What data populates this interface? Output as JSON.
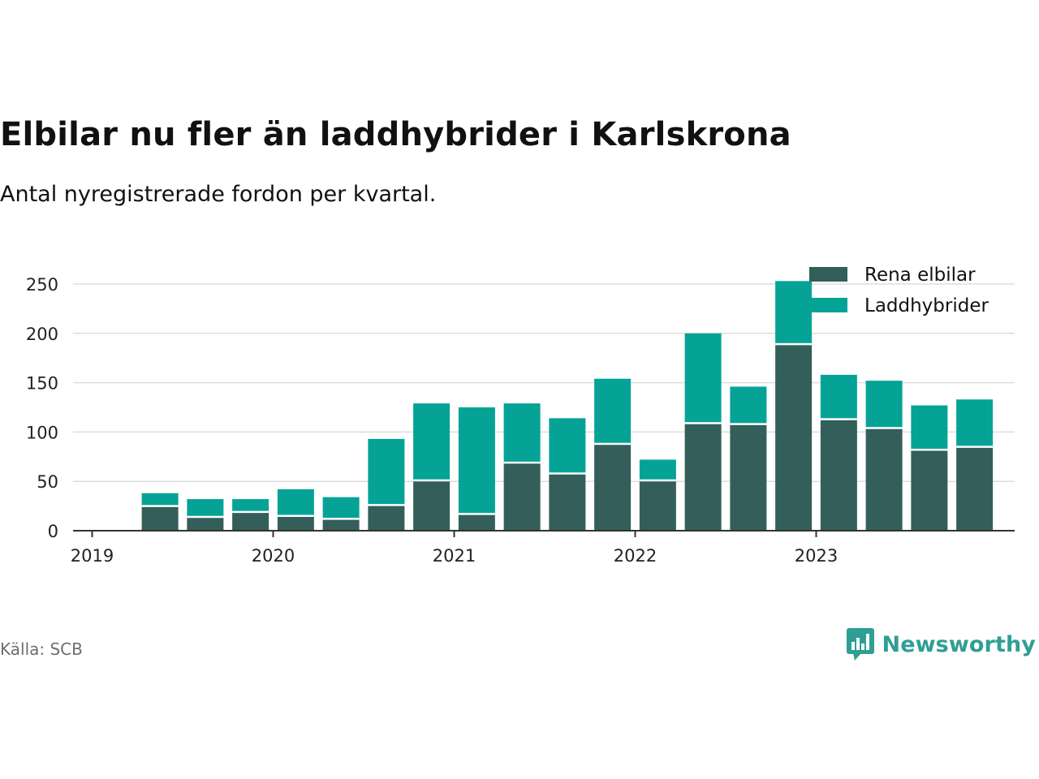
{
  "header": {
    "title": "Elbilar nu fler än laddhybrider i Karlskrona",
    "subtitle": "Antal nyregistrerade fordon per kvartal."
  },
  "footer": {
    "source": "Källa: SCB",
    "brand": "Newsworthy",
    "brand_icon": "newsworthy-logo-icon"
  },
  "colors": {
    "rena_elbilar": "#345e5a",
    "laddhybrider": "#05a396",
    "grid": "#dddddd",
    "axis": "#333333",
    "brand": "#2f9e95"
  },
  "chart_data": {
    "type": "bar",
    "stacked": true,
    "categories": [
      "2019 K2",
      "2019 K3",
      "2019 K4",
      "2020 K1",
      "2020 K2",
      "2020 K3",
      "2020 K4",
      "2021 K1",
      "2021 K2",
      "2021 K3",
      "2021 K4",
      "2022 K1",
      "2022 K2",
      "2022 K3",
      "2022 K4",
      "2023 K1",
      "2023 K2",
      "2023 K3",
      "2023 K4"
    ],
    "series": [
      {
        "name": "Rena elbilar",
        "values": [
          25,
          14,
          19,
          15,
          12,
          26,
          51,
          17,
          69,
          58,
          88,
          51,
          109,
          108,
          189,
          113,
          104,
          82,
          85
        ]
      },
      {
        "name": "Laddhybrider",
        "values": [
          13,
          18,
          13,
          27,
          22,
          67,
          78,
          108,
          60,
          56,
          66,
          21,
          91,
          38,
          64,
          45,
          48,
          45,
          48
        ]
      }
    ],
    "x_tick_labels": [
      "2019",
      "2020",
      "2021",
      "2022",
      "2023"
    ],
    "y_ticks": [
      0,
      50,
      100,
      150,
      200,
      250
    ],
    "ylim": [
      0,
      260
    ],
    "grid": true,
    "legend_placement": "top-right"
  }
}
